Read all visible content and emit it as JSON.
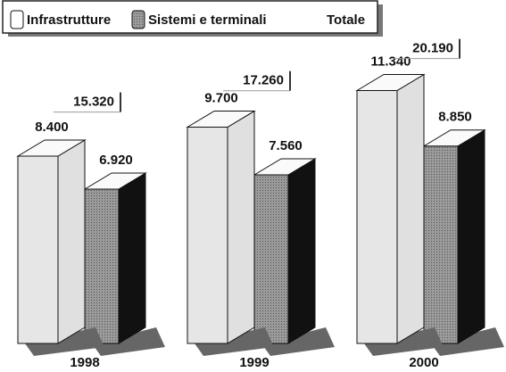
{
  "chart_data": {
    "type": "bar3d",
    "categories": [
      "1998",
      "1999",
      "2000"
    ],
    "series": [
      {
        "name": "Infrastrutture",
        "color": "#e6e6e6",
        "values": [
          8400,
          9700,
          11340
        ],
        "value_labels": [
          "8.400",
          "9.700",
          "11.340"
        ]
      },
      {
        "name": "Sistemi e terminali",
        "color": "#8a8a8a",
        "values": [
          6920,
          7560,
          8850
        ],
        "value_labels": [
          "6.920",
          "7.560",
          "8.850"
        ]
      },
      {
        "name": "Totale",
        "values": [
          15320,
          17260,
          20190
        ],
        "value_labels": [
          "15.320",
          "17.260",
          "20.190"
        ]
      }
    ]
  }
}
